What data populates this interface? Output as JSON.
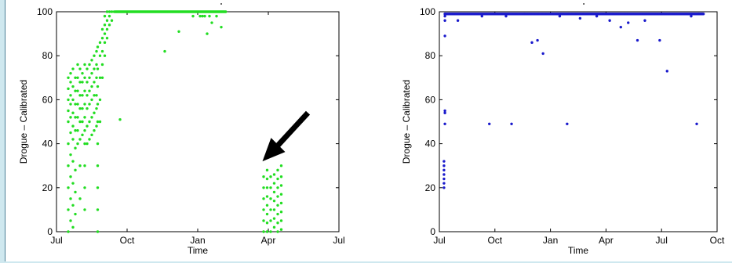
{
  "chart_data": [
    {
      "type": "scatter",
      "title": "",
      "xlabel": "Time",
      "ylabel": "Drogue – Calibrated",
      "xlim": [
        0,
        12
      ],
      "ylim": [
        0,
        100
      ],
      "x_ticks": [
        0,
        3,
        6,
        9,
        12
      ],
      "x_tick_labels": [
        "Jul",
        "Oct",
        "Jan",
        "Apr",
        "Jul"
      ],
      "y_ticks": [
        0,
        20,
        40,
        60,
        80,
        100
      ],
      "y_tick_labels": [
        "0",
        "20",
        "40",
        "60",
        "80",
        "100"
      ],
      "grid": false,
      "color": "#22dd22",
      "annotation": "black arrow pointing to the low-value cluster near Apr",
      "points": [
        [
          0.5,
          0
        ],
        [
          0.5,
          10
        ],
        [
          0.5,
          20
        ],
        [
          0.5,
          30
        ],
        [
          0.5,
          40
        ],
        [
          0.5,
          50
        ],
        [
          0.5,
          55
        ],
        [
          0.5,
          60
        ],
        [
          0.5,
          65
        ],
        [
          0.5,
          70
        ],
        [
          0.6,
          5
        ],
        [
          0.6,
          15
        ],
        [
          0.6,
          25
        ],
        [
          0.6,
          35
        ],
        [
          0.6,
          45
        ],
        [
          0.6,
          52
        ],
        [
          0.6,
          58
        ],
        [
          0.6,
          62
        ],
        [
          0.6,
          68
        ],
        [
          0.6,
          72
        ],
        [
          0.7,
          2
        ],
        [
          0.7,
          12
        ],
        [
          0.7,
          22
        ],
        [
          0.7,
          32
        ],
        [
          0.7,
          42
        ],
        [
          0.7,
          48
        ],
        [
          0.7,
          54
        ],
        [
          0.7,
          60
        ],
        [
          0.7,
          66
        ],
        [
          0.7,
          74
        ],
        [
          0.8,
          8
        ],
        [
          0.8,
          18
        ],
        [
          0.8,
          28
        ],
        [
          0.8,
          38
        ],
        [
          0.8,
          46
        ],
        [
          0.8,
          52
        ],
        [
          0.8,
          58
        ],
        [
          0.8,
          64
        ],
        [
          0.8,
          70
        ],
        [
          0.9,
          40
        ],
        [
          0.9,
          46
        ],
        [
          0.9,
          52
        ],
        [
          0.9,
          58
        ],
        [
          0.9,
          64
        ],
        [
          0.9,
          70
        ],
        [
          0.9,
          76
        ],
        [
          1.0,
          15
        ],
        [
          1.0,
          30
        ],
        [
          1.0,
          42
        ],
        [
          1.0,
          50
        ],
        [
          1.0,
          56
        ],
        [
          1.0,
          62
        ],
        [
          1.0,
          68
        ],
        [
          1.0,
          74
        ],
        [
          1.1,
          44
        ],
        [
          1.1,
          50
        ],
        [
          1.1,
          56
        ],
        [
          1.1,
          62
        ],
        [
          1.1,
          68
        ],
        [
          1.1,
          72
        ],
        [
          1.2,
          10
        ],
        [
          1.2,
          20
        ],
        [
          1.2,
          30
        ],
        [
          1.2,
          40
        ],
        [
          1.2,
          46
        ],
        [
          1.2,
          52
        ],
        [
          1.2,
          58
        ],
        [
          1.2,
          64
        ],
        [
          1.2,
          70
        ],
        [
          1.2,
          76
        ],
        [
          1.3,
          40
        ],
        [
          1.3,
          48
        ],
        [
          1.3,
          56
        ],
        [
          1.3,
          62
        ],
        [
          1.3,
          68
        ],
        [
          1.3,
          74
        ],
        [
          1.4,
          42
        ],
        [
          1.4,
          50
        ],
        [
          1.4,
          58
        ],
        [
          1.4,
          64
        ],
        [
          1.4,
          70
        ],
        [
          1.4,
          76
        ],
        [
          1.5,
          44
        ],
        [
          1.5,
          52
        ],
        [
          1.5,
          60
        ],
        [
          1.5,
          66
        ],
        [
          1.5,
          72
        ],
        [
          1.5,
          78
        ],
        [
          1.6,
          46
        ],
        [
          1.6,
          54
        ],
        [
          1.6,
          62
        ],
        [
          1.6,
          68
        ],
        [
          1.6,
          74
        ],
        [
          1.6,
          80
        ],
        [
          1.7,
          48
        ],
        [
          1.7,
          56
        ],
        [
          1.7,
          62
        ],
        [
          1.7,
          70
        ],
        [
          1.7,
          76
        ],
        [
          1.7,
          82
        ],
        [
          1.75,
          0
        ],
        [
          1.75,
          10
        ],
        [
          1.75,
          20
        ],
        [
          1.75,
          30
        ],
        [
          1.75,
          40
        ],
        [
          1.75,
          50
        ],
        [
          1.75,
          58
        ],
        [
          1.75,
          66
        ],
        [
          1.75,
          74
        ],
        [
          1.75,
          84
        ],
        [
          1.85,
          50
        ],
        [
          1.85,
          60
        ],
        [
          1.85,
          70
        ],
        [
          1.85,
          80
        ],
        [
          1.85,
          86
        ],
        [
          1.95,
          70
        ],
        [
          1.95,
          76
        ],
        [
          1.95,
          82
        ],
        [
          1.95,
          88
        ],
        [
          1.95,
          92
        ],
        [
          2.05,
          80
        ],
        [
          2.05,
          86
        ],
        [
          2.05,
          90
        ],
        [
          2.05,
          94
        ],
        [
          2.05,
          98
        ],
        [
          2.15,
          88
        ],
        [
          2.15,
          92
        ],
        [
          2.15,
          96
        ],
        [
          2.15,
          100
        ],
        [
          2.25,
          94
        ],
        [
          2.25,
          98
        ],
        [
          2.25,
          100
        ],
        [
          2.35,
          96
        ],
        [
          2.35,
          100
        ],
        [
          2.45,
          100
        ],
        [
          2.7,
          51
        ],
        [
          4.6,
          82
        ],
        [
          5.2,
          91
        ],
        [
          5.8,
          98
        ],
        [
          6.1,
          98
        ],
        [
          6.4,
          90
        ],
        [
          6.6,
          95
        ],
        [
          6.8,
          98
        ],
        [
          7.0,
          93
        ],
        [
          6.2,
          98
        ],
        [
          6.5,
          98
        ],
        [
          6.3,
          98
        ],
        [
          8.8,
          0
        ],
        [
          8.8,
          5
        ],
        [
          8.8,
          10
        ],
        [
          8.8,
          15
        ],
        [
          8.8,
          20
        ],
        [
          8.8,
          25
        ],
        [
          8.95,
          0
        ],
        [
          8.95,
          4
        ],
        [
          8.95,
          8
        ],
        [
          8.95,
          12
        ],
        [
          8.95,
          16
        ],
        [
          8.95,
          20
        ],
        [
          8.95,
          24
        ],
        [
          8.95,
          28
        ],
        [
          9.1,
          0
        ],
        [
          9.1,
          5
        ],
        [
          9.1,
          10
        ],
        [
          9.1,
          15
        ],
        [
          9.1,
          20
        ],
        [
          9.1,
          25
        ],
        [
          9.25,
          2
        ],
        [
          9.25,
          6
        ],
        [
          9.25,
          10
        ],
        [
          9.25,
          14
        ],
        [
          9.25,
          18
        ],
        [
          9.25,
          22
        ],
        [
          9.25,
          26
        ],
        [
          9.4,
          0
        ],
        [
          9.4,
          4
        ],
        [
          9.4,
          8
        ],
        [
          9.4,
          12
        ],
        [
          9.4,
          16
        ],
        [
          9.4,
          20
        ],
        [
          9.4,
          24
        ],
        [
          9.4,
          28
        ],
        [
          9.55,
          1
        ],
        [
          9.55,
          5
        ],
        [
          9.55,
          9
        ],
        [
          9.55,
          13
        ],
        [
          9.55,
          17
        ],
        [
          9.55,
          21
        ],
        [
          9.55,
          25
        ],
        [
          9.55,
          30
        ]
      ],
      "band": {
        "x_from": 2.5,
        "x_to": 7.2,
        "y": 100
      }
    },
    {
      "type": "scatter",
      "title": "",
      "xlabel": "Time",
      "ylabel": "Drogue – Calibrated",
      "xlim": [
        0,
        15
      ],
      "ylim": [
        0,
        100
      ],
      "x_ticks": [
        0,
        3,
        6,
        9,
        12,
        15
      ],
      "x_tick_labels": [
        "Jul",
        "Oct",
        "Jan",
        "Apr",
        "Jul",
        "Oct"
      ],
      "y_ticks": [
        0,
        20,
        40,
        60,
        80,
        100
      ],
      "y_tick_labels": [
        "0",
        "20",
        "40",
        "60",
        "80",
        "100"
      ],
      "grid": false,
      "color": "#1a1acc",
      "points": [
        [
          0.25,
          20
        ],
        [
          0.25,
          22
        ],
        [
          0.25,
          24
        ],
        [
          0.25,
          26
        ],
        [
          0.25,
          28
        ],
        [
          0.25,
          30
        ],
        [
          0.25,
          32
        ],
        [
          0.3,
          49
        ],
        [
          0.3,
          54
        ],
        [
          0.3,
          55
        ],
        [
          0.3,
          89
        ],
        [
          0.3,
          96
        ],
        [
          0.3,
          98
        ],
        [
          0.3,
          99
        ],
        [
          1.0,
          96
        ],
        [
          2.3,
          98
        ],
        [
          2.7,
          49
        ],
        [
          3.6,
          98
        ],
        [
          3.9,
          49
        ],
        [
          4.6,
          99
        ],
        [
          5.0,
          86
        ],
        [
          5.3,
          87
        ],
        [
          5.6,
          81
        ],
        [
          6.5,
          98
        ],
        [
          6.9,
          49
        ],
        [
          7.6,
          97
        ],
        [
          8.5,
          98
        ],
        [
          9.2,
          96
        ],
        [
          9.8,
          93
        ],
        [
          10.2,
          95
        ],
        [
          10.7,
          87
        ],
        [
          11.1,
          96
        ],
        [
          11.9,
          87
        ],
        [
          12.3,
          73
        ],
        [
          13.6,
          98
        ],
        [
          13.9,
          49
        ],
        [
          14.0,
          99
        ]
      ],
      "band": {
        "x_from": 0.3,
        "x_to": 14.3,
        "y": 99
      }
    }
  ]
}
